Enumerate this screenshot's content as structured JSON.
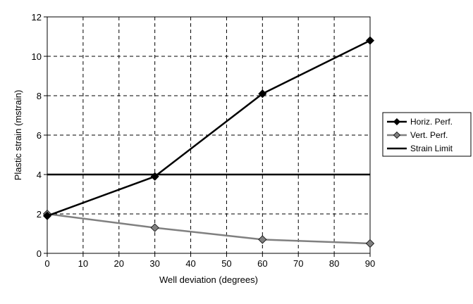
{
  "chart_data": {
    "type": "line",
    "xlabel": "Well deviation (degrees)",
    "ylabel": "Plastic strain (mstrain)",
    "xlim": [
      0,
      90
    ],
    "ylim": [
      0,
      12
    ],
    "xticks": [
      0,
      10,
      20,
      30,
      40,
      50,
      60,
      70,
      80,
      90
    ],
    "yticks": [
      0,
      2,
      4,
      6,
      8,
      10,
      12
    ],
    "grid": true,
    "legend_position": "right",
    "series": [
      {
        "name": "Horiz. Perf.",
        "x": [
          0,
          30,
          60,
          90
        ],
        "y": [
          1.9,
          3.9,
          8.1,
          10.8
        ],
        "color": "#000000",
        "marker": "diamond"
      },
      {
        "name": "Vert. Perf.",
        "x": [
          0,
          30,
          60,
          90
        ],
        "y": [
          2.0,
          1.3,
          0.7,
          0.5
        ],
        "color": "#808080",
        "marker": "diamond"
      },
      {
        "name": "Strain Limit",
        "x": [
          0,
          90
        ],
        "y": [
          4,
          4
        ],
        "color": "#000000",
        "marker": "none"
      }
    ]
  }
}
